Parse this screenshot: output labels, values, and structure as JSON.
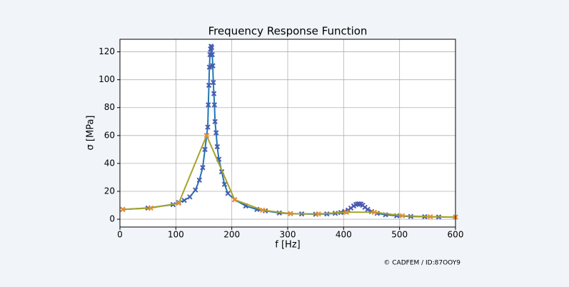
{
  "chart_data": {
    "type": "line",
    "title": "Frequency Response Function",
    "x_label": "f [Hz]",
    "y_label": "σ [MPa]",
    "annotation": "© CADFEM / ID:87OOY9",
    "xlim": [
      0,
      600
    ],
    "xticks": [
      0,
      100,
      200,
      300,
      400,
      500,
      600
    ],
    "ylim": [
      -5.6,
      129
    ],
    "yticks": [
      0,
      20,
      40,
      60,
      80,
      100,
      120
    ],
    "grid": true,
    "series": [
      {
        "color": "#1f77b4",
        "marker_color": "#4a5bb0",
        "x": [
          5,
          50,
          95,
          105,
          115,
          125,
          135,
          142,
          148,
          152,
          155,
          157,
          158,
          159,
          160,
          161,
          162,
          163,
          164,
          165,
          166,
          167,
          168,
          169,
          170,
          172,
          174,
          177,
          182,
          187,
          193,
          205,
          225,
          245,
          260,
          285,
          305,
          325,
          350,
          370,
          385,
          395,
          402,
          408,
          413,
          418,
          422,
          425,
          428,
          431,
          434,
          438,
          443,
          450,
          460,
          475,
          495,
          520,
          545,
          570,
          600
        ],
        "values": [
          7,
          8,
          10.5,
          12,
          13.5,
          16,
          21,
          28,
          37,
          50,
          60,
          66,
          82,
          96,
          109,
          118,
          122,
          124,
          123,
          118,
          110,
          98,
          90,
          82,
          70,
          62,
          52,
          43,
          34,
          25,
          18.5,
          14,
          9.5,
          7,
          6,
          4.5,
          4,
          3.8,
          3.6,
          3.8,
          4.2,
          4.8,
          5.5,
          6.5,
          8,
          9.5,
          10.5,
          11,
          11,
          10.8,
          10,
          8.5,
          7,
          5.5,
          4.2,
          3.2,
          2.5,
          2,
          1.8,
          1.6,
          1.5
        ]
      },
      {
        "color": "#a6a32a",
        "marker_color": "#f08c2a",
        "x": [
          5,
          55,
          105,
          155,
          205,
          255,
          305,
          355,
          405,
          455,
          505,
          555,
          600
        ],
        "values": [
          7,
          8,
          11.5,
          60,
          14,
          6.5,
          4,
          3.8,
          5,
          5,
          2.5,
          1.8,
          1.5
        ]
      }
    ]
  }
}
